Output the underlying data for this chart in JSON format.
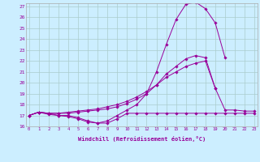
{
  "xlabel": "Windchill (Refroidissement éolien,°C)",
  "bg_color": "#cceeff",
  "line_color": "#990099",
  "grid_color": "#aacccc",
  "xmin": 0,
  "xmax": 23,
  "ymin": 16,
  "ymax": 27,
  "lines": [
    [
      17.0,
      17.3,
      17.1,
      17.0,
      17.0,
      16.8,
      16.5,
      16.3,
      16.3,
      16.7,
      17.2,
      17.2,
      17.2,
      17.2,
      17.2,
      17.2,
      17.2,
      17.2,
      17.2,
      17.2,
      17.2,
      17.2,
      17.2,
      17.2
    ],
    [
      17.0,
      17.3,
      17.2,
      17.0,
      16.9,
      16.7,
      16.4,
      16.3,
      16.5,
      17.0,
      17.5,
      18.0,
      19.0,
      21.0,
      23.5,
      25.8,
      27.2,
      27.4,
      26.8,
      25.5,
      22.3,
      null,
      null,
      null
    ],
    [
      17.0,
      17.3,
      17.2,
      17.2,
      17.2,
      17.3,
      17.4,
      17.5,
      17.6,
      17.8,
      18.1,
      18.5,
      19.0,
      19.8,
      20.8,
      21.5,
      22.2,
      22.5,
      22.3,
      19.5,
      null,
      null,
      null,
      null
    ],
    [
      17.0,
      17.3,
      17.2,
      17.2,
      17.3,
      17.4,
      17.5,
      17.6,
      17.8,
      18.0,
      18.3,
      18.7,
      19.2,
      19.8,
      20.5,
      21.0,
      21.5,
      21.8,
      22.0,
      19.5,
      17.5,
      17.5,
      17.4,
      17.4
    ]
  ]
}
